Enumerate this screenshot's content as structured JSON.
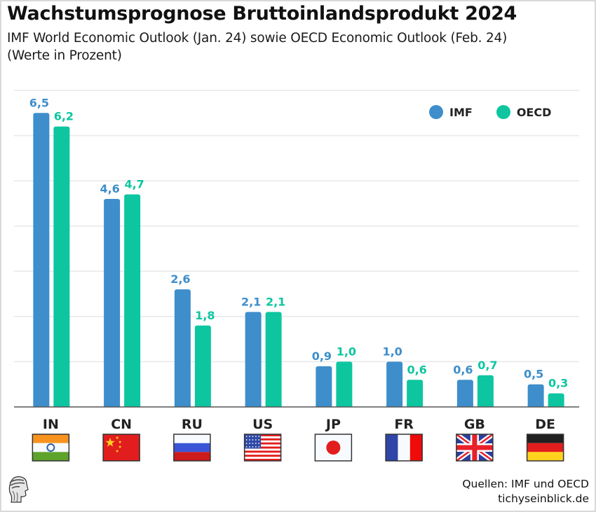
{
  "header": {
    "title": "Wachstumsprognose Bruttoinlandsprodukt 2024",
    "subtitle_line1": "IMF World Economic Outlook (Jan. 24) sowie OECD Economic Outlook (Feb. 24)",
    "subtitle_line2": "(Werte in Prozent)"
  },
  "footer": {
    "source_line1": "Quellen: IMF und OECD",
    "source_line2": "tichyseinblick.de",
    "logo_icon": "hermes-head-logo-icon"
  },
  "chart_data": {
    "type": "bar",
    "title": "Wachstumsprognose Bruttoinlandsprodukt 2024",
    "subtitle": "IMF World Economic Outlook (Jan. 24) sowie OECD Economic Outlook (Feb. 24) (Werte in Prozent)",
    "xlabel": "",
    "ylabel": "",
    "categories": [
      "IN",
      "CN",
      "RU",
      "US",
      "JP",
      "FR",
      "GB",
      "DE"
    ],
    "flags": [
      "india-flag-icon",
      "china-flag-icon",
      "russia-flag-icon",
      "usa-flag-icon",
      "japan-flag-icon",
      "france-flag-icon",
      "uk-flag-icon",
      "germany-flag-icon"
    ],
    "series": [
      {
        "name": "IMF",
        "color": "#3d8ecb",
        "values": [
          6.5,
          4.6,
          2.6,
          2.1,
          0.9,
          1.0,
          0.6,
          0.5
        ],
        "labels": [
          "6,5",
          "4,6",
          "2,6",
          "2,1",
          "0,9",
          "1,0",
          "0,6",
          "0,5"
        ]
      },
      {
        "name": "OECD",
        "color": "#0dc6a0",
        "values": [
          6.2,
          4.7,
          1.8,
          2.1,
          1.0,
          0.6,
          0.7,
          0.3
        ],
        "labels": [
          "6,2",
          "4,7",
          "1,8",
          "2,1",
          "1,0",
          "0,6",
          "0,7",
          "0,3"
        ]
      }
    ],
    "ylim": [
      0,
      7
    ],
    "gridlines": [
      1,
      2,
      3,
      4,
      5,
      6,
      7
    ],
    "grid": true,
    "y_axis_visible": false,
    "legend_position": "top-right",
    "decimal_separator": ","
  }
}
